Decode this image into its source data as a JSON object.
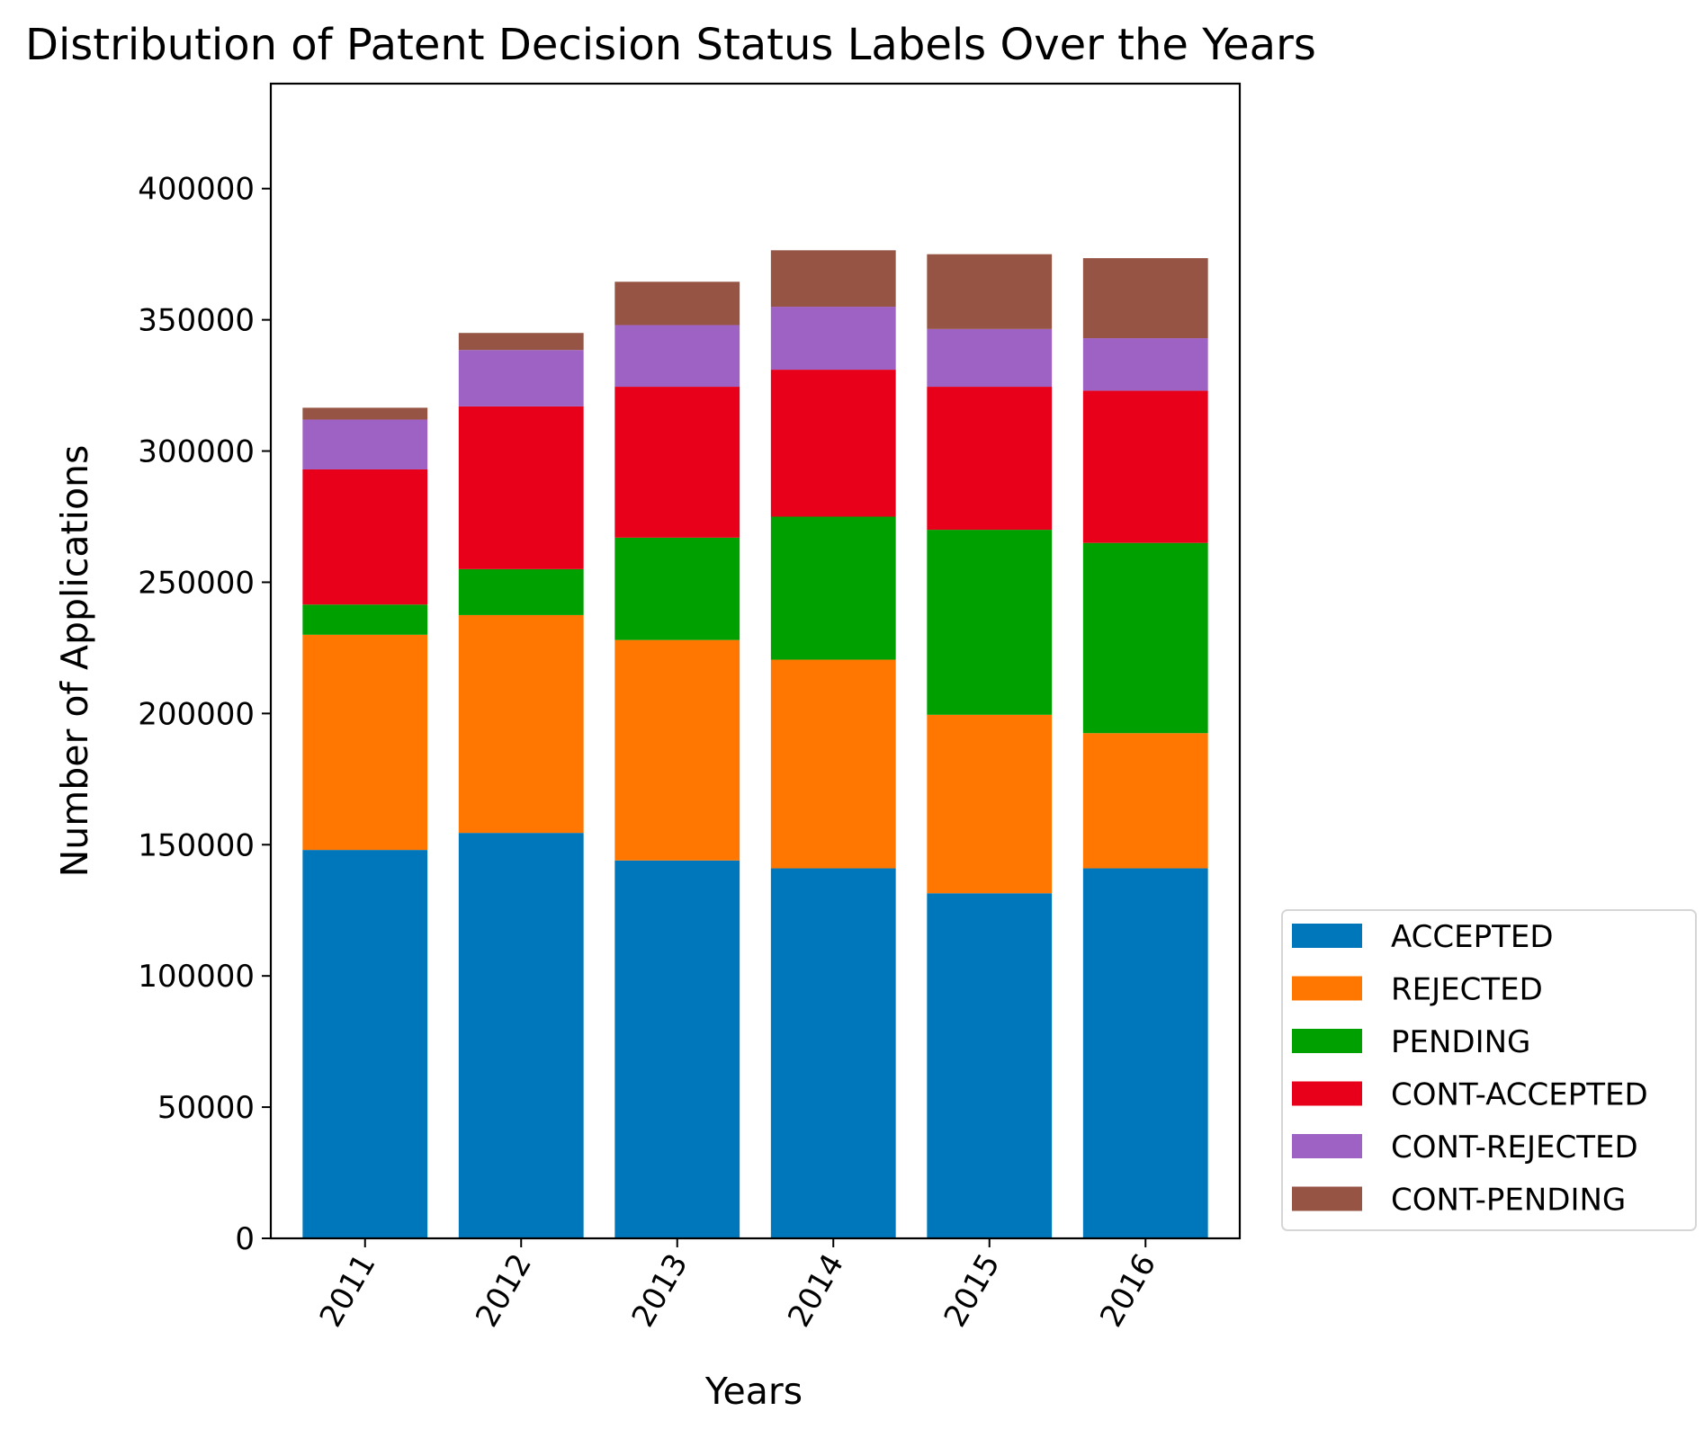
{
  "chart_data": {
    "type": "bar",
    "stacked": true,
    "title": "Distribution of Patent Decision Status Labels Over the Years",
    "xlabel": "Years",
    "ylabel": "Number of Applications",
    "categories": [
      "2011",
      "2012",
      "2013",
      "2014",
      "2015",
      "2016"
    ],
    "ylim": [
      0,
      440000
    ],
    "yticks": [
      0,
      50000,
      100000,
      150000,
      200000,
      250000,
      300000,
      350000,
      400000
    ],
    "ytick_labels": [
      "0",
      "50000",
      "100000",
      "150000",
      "200000",
      "250000",
      "300000",
      "350000",
      "400000"
    ],
    "xtick_rotation": -60,
    "grid": false,
    "legend_position": "outside-lower-right",
    "series": [
      {
        "name": "ACCEPTED",
        "color": "#0077bb",
        "values": [
          148000,
          154500,
          144000,
          141000,
          131500,
          141000
        ]
      },
      {
        "name": "REJECTED",
        "color": "#ff7700",
        "values": [
          82000,
          83000,
          84000,
          79500,
          68000,
          51500
        ]
      },
      {
        "name": "PENDING",
        "color": "#00a000",
        "values": [
          11500,
          17500,
          39000,
          54500,
          70500,
          72500
        ]
      },
      {
        "name": "CONT-ACCEPTED",
        "color": "#e8001a",
        "values": [
          51500,
          62000,
          57500,
          56000,
          54500,
          58000
        ]
      },
      {
        "name": "CONT-REJECTED",
        "color": "#9e62c4",
        "values": [
          19000,
          21500,
          23500,
          24000,
          22000,
          20000
        ]
      },
      {
        "name": "CONT-PENDING",
        "color": "#955444",
        "values": [
          4500,
          6500,
          16500,
          21500,
          28500,
          30500
        ]
      }
    ]
  }
}
